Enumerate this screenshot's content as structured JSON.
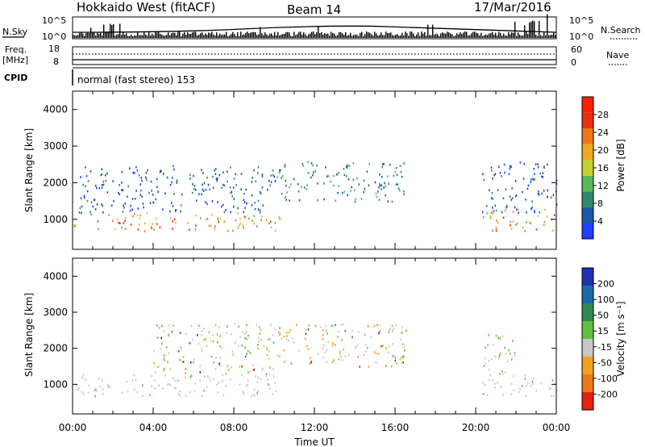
{
  "header": {
    "title": "Hokkaido West (fitACF)",
    "beam": "Beam 14",
    "date": "17/Mar/2016"
  },
  "panels": {
    "nsky": {
      "label": "N.Sky",
      "ticks": [
        "10^5",
        "10^0"
      ],
      "right_label": "N.Search",
      "right_ticks": [
        "10^5",
        "10^0"
      ]
    },
    "freq": {
      "label_top": "Freq.",
      "label_unit": "[MHz]",
      "ticks": [
        "18",
        "8"
      ],
      "right_label": "Nave",
      "right_ticks": [
        "60",
        "0"
      ]
    },
    "cpid": {
      "label": "CPID",
      "text": "normal (fast stereo) 153"
    }
  },
  "chart_data": [
    {
      "type": "heatmap",
      "name": "power",
      "ylabel": "Slant Range [km]",
      "xlabel": "",
      "yticks": [
        1000,
        2000,
        3000,
        4000
      ],
      "ylim": [
        180,
        4500
      ],
      "xlim_hours": [
        0,
        24
      ],
      "colorbar": {
        "label": "Power [dB]",
        "ticks": [
          "4",
          "8",
          "12",
          "16",
          "20",
          "24",
          "28"
        ],
        "colors": [
          "#2040ff",
          "#1a5aa8",
          "#2e8a6e",
          "#58b85a",
          "#c8d030",
          "#f0a820",
          "#f07818",
          "#e83010",
          "#ff2000"
        ]
      },
      "echo_bands": [
        {
          "t0": 0.0,
          "t1": 10.3,
          "r0": 700,
          "r1": 1200,
          "level": "high"
        },
        {
          "t0": 0.3,
          "t1": 10.0,
          "r0": 1200,
          "r1": 2500,
          "level": "low"
        },
        {
          "t0": 10.0,
          "t1": 16.6,
          "r0": 1500,
          "r1": 2600,
          "level": "mid"
        },
        {
          "t0": 20.3,
          "t1": 24.0,
          "r0": 700,
          "r1": 1300,
          "level": "high"
        },
        {
          "t0": 20.3,
          "t1": 24.0,
          "r0": 1200,
          "r1": 2600,
          "level": "low"
        }
      ]
    },
    {
      "type": "heatmap",
      "name": "velocity",
      "ylabel": "Slant Range [km]",
      "xlabel": "Time UT",
      "yticks": [
        1000,
        2000,
        3000,
        4000
      ],
      "ylim": [
        180,
        4500
      ],
      "xlim_hours": [
        0,
        24
      ],
      "xticks": [
        "00:00",
        "04:00",
        "08:00",
        "12:00",
        "16:00",
        "20:00",
        "00:00"
      ],
      "colorbar": {
        "label": "Velocity [m s⁻¹]",
        "ticks": [
          "200",
          "100",
          "50",
          "15",
          "-15",
          "-50",
          "-100",
          "-200"
        ],
        "colors": [
          "#2030b0",
          "#1a6aa8",
          "#2e8a50",
          "#60c040",
          "#c8c8c8",
          "#f0a020",
          "#f07818",
          "#e82010"
        ]
      },
      "echo_bands": [
        {
          "t0": 0.0,
          "t1": 10.3,
          "r0": 700,
          "r1": 1300,
          "level": "ground"
        },
        {
          "t0": 4.0,
          "t1": 10.0,
          "r0": 1300,
          "r1": 2700,
          "level": "mixed"
        },
        {
          "t0": 10.0,
          "t1": 16.6,
          "r0": 1500,
          "r1": 2700,
          "level": "mixed"
        },
        {
          "t0": 20.3,
          "t1": 24.0,
          "r0": 700,
          "r1": 1300,
          "level": "ground"
        },
        {
          "t0": 20.3,
          "t1": 22.0,
          "r0": 1300,
          "r1": 2400,
          "level": "green"
        }
      ]
    }
  ]
}
